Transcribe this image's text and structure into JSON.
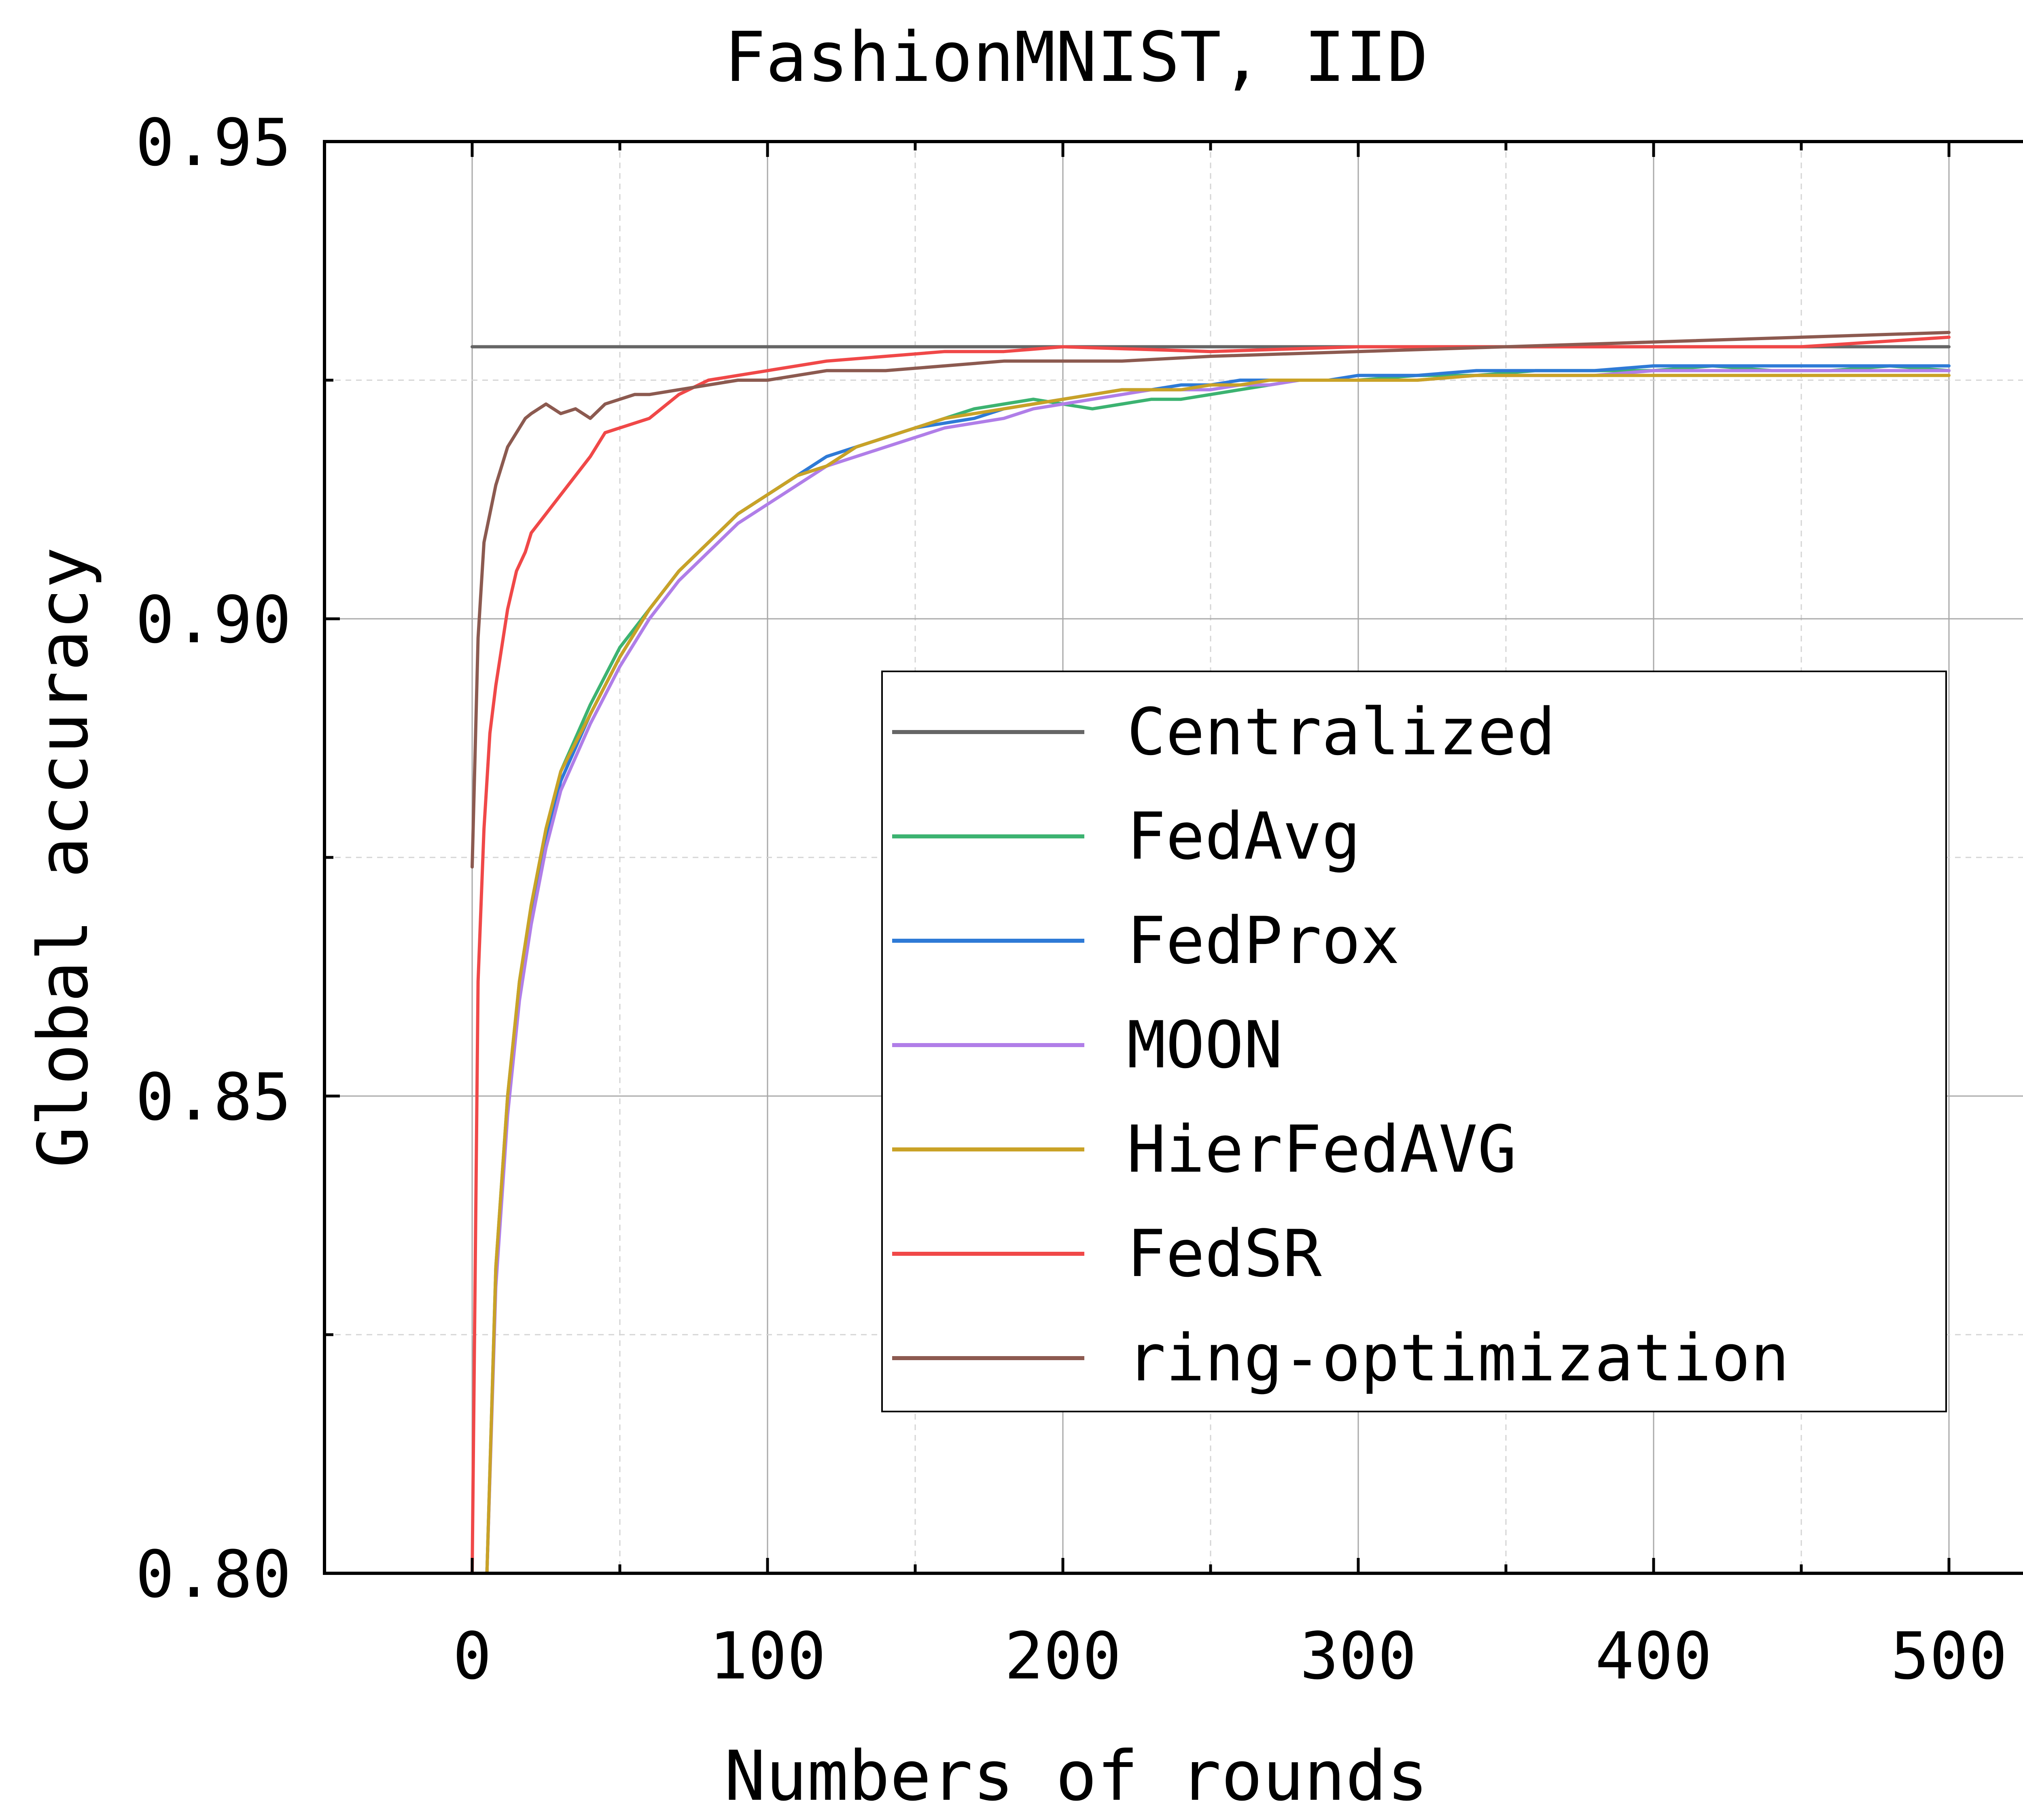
{
  "chart_data": {
    "type": "line",
    "title": "FashionMNIST, IID",
    "xlabel": "Numbers of rounds",
    "ylabel": "Global accuracy",
    "xlim": [
      -50,
      550
    ],
    "ylim": [
      0.8,
      0.95
    ],
    "xticks": [
      0,
      100,
      200,
      300,
      400,
      500
    ],
    "xtick_labels": [
      "0",
      "100",
      "200",
      "300",
      "400",
      "500"
    ],
    "yticks": [
      0.8,
      0.85,
      0.9,
      0.95
    ],
    "ytick_labels": [
      "0.80",
      "0.85",
      "0.90",
      "0.95"
    ],
    "grid": true,
    "legend_position": "center-right",
    "series": [
      {
        "name": "Centralized",
        "color": "#666666",
        "x": [
          0,
          500
        ],
        "y": [
          0.9285,
          0.9285
        ]
      },
      {
        "name": "FedAvg",
        "color": "#3cb371",
        "x": [
          5,
          8,
          12,
          16,
          20,
          25,
          30,
          40,
          50,
          60,
          70,
          80,
          90,
          100,
          110,
          120,
          130,
          140,
          150,
          160,
          170,
          180,
          190,
          200,
          210,
          220,
          230,
          240,
          250,
          260,
          270,
          280,
          290,
          300,
          320,
          340,
          360,
          380,
          400,
          420,
          440,
          460,
          480,
          500
        ],
        "y": [
          0.8,
          0.832,
          0.85,
          0.862,
          0.87,
          0.878,
          0.884,
          0.891,
          0.897,
          0.901,
          0.905,
          0.908,
          0.911,
          0.913,
          0.915,
          0.916,
          0.918,
          0.919,
          0.92,
          0.921,
          0.922,
          0.9225,
          0.923,
          0.9225,
          0.922,
          0.9225,
          0.923,
          0.923,
          0.9235,
          0.924,
          0.9245,
          0.925,
          0.925,
          0.925,
          0.9255,
          0.9255,
          0.926,
          0.926,
          0.926,
          0.9265,
          0.926,
          0.926,
          0.9265,
          0.926
        ]
      },
      {
        "name": "FedProx",
        "color": "#2e7ad6",
        "x": [
          5,
          8,
          12,
          16,
          20,
          25,
          30,
          40,
          50,
          60,
          70,
          80,
          90,
          100,
          110,
          120,
          130,
          140,
          150,
          160,
          170,
          180,
          190,
          200,
          210,
          220,
          230,
          240,
          250,
          260,
          270,
          280,
          290,
          300,
          320,
          340,
          360,
          380,
          400,
          420,
          440,
          460,
          480,
          500
        ],
        "y": [
          0.8,
          0.831,
          0.849,
          0.861,
          0.869,
          0.877,
          0.883,
          0.89,
          0.896,
          0.901,
          0.905,
          0.908,
          0.911,
          0.913,
          0.915,
          0.917,
          0.918,
          0.919,
          0.92,
          0.9205,
          0.921,
          0.922,
          0.9225,
          0.923,
          0.9235,
          0.924,
          0.924,
          0.9245,
          0.9245,
          0.925,
          0.925,
          0.925,
          0.925,
          0.9255,
          0.9255,
          0.926,
          0.926,
          0.926,
          0.9265,
          0.9265,
          0.9265,
          0.9265,
          0.9265,
          0.9265
        ]
      },
      {
        "name": "MOON",
        "color": "#b07ee8",
        "x": [
          5,
          8,
          12,
          16,
          20,
          25,
          30,
          40,
          50,
          60,
          70,
          80,
          90,
          100,
          110,
          120,
          130,
          140,
          150,
          160,
          170,
          180,
          190,
          200,
          210,
          220,
          230,
          240,
          250,
          260,
          270,
          280,
          290,
          300,
          320,
          340,
          360,
          380,
          400,
          420,
          440,
          460,
          480,
          500
        ],
        "y": [
          0.8,
          0.83,
          0.848,
          0.86,
          0.868,
          0.876,
          0.882,
          0.889,
          0.895,
          0.9,
          0.904,
          0.907,
          0.91,
          0.912,
          0.914,
          0.916,
          0.917,
          0.918,
          0.919,
          0.92,
          0.9205,
          0.921,
          0.922,
          0.9225,
          0.923,
          0.9235,
          0.924,
          0.924,
          0.924,
          0.9245,
          0.9245,
          0.925,
          0.925,
          0.925,
          0.925,
          0.9255,
          0.9255,
          0.9255,
          0.926,
          0.926,
          0.926,
          0.926,
          0.926,
          0.926
        ]
      },
      {
        "name": "HierFedAVG",
        "color": "#c9a227",
        "x": [
          5,
          8,
          12,
          16,
          20,
          25,
          30,
          40,
          50,
          60,
          70,
          80,
          90,
          100,
          110,
          120,
          130,
          140,
          150,
          160,
          170,
          180,
          190,
          200,
          210,
          220,
          230,
          240,
          250,
          260,
          270,
          280,
          290,
          300,
          320,
          340,
          360,
          380,
          400,
          420,
          440,
          460,
          480,
          500
        ],
        "y": [
          0.8,
          0.832,
          0.85,
          0.862,
          0.87,
          0.878,
          0.884,
          0.89,
          0.896,
          0.901,
          0.905,
          0.908,
          0.911,
          0.913,
          0.915,
          0.916,
          0.918,
          0.919,
          0.92,
          0.921,
          0.9215,
          0.922,
          0.9225,
          0.923,
          0.9235,
          0.924,
          0.924,
          0.924,
          0.9245,
          0.9245,
          0.925,
          0.925,
          0.925,
          0.925,
          0.925,
          0.9255,
          0.9255,
          0.9255,
          0.9255,
          0.9255,
          0.9255,
          0.9255,
          0.9255,
          0.9255
        ]
      },
      {
        "name": "FedSR",
        "color": "#f04848",
        "x": [
          0,
          2,
          4,
          6,
          8,
          10,
          12,
          15,
          18,
          20,
          25,
          30,
          35,
          40,
          45,
          50,
          60,
          70,
          80,
          90,
          100,
          120,
          140,
          160,
          180,
          200,
          250,
          300,
          350,
          400,
          450,
          500
        ],
        "y": [
          0.8,
          0.862,
          0.878,
          0.888,
          0.893,
          0.897,
          0.901,
          0.905,
          0.907,
          0.909,
          0.911,
          0.913,
          0.915,
          0.917,
          0.9195,
          0.92,
          0.921,
          0.9235,
          0.925,
          0.9255,
          0.926,
          0.927,
          0.9275,
          0.928,
          0.928,
          0.9285,
          0.928,
          0.9285,
          0.9285,
          0.9285,
          0.9285,
          0.9295
        ]
      },
      {
        "name": "ring-optimization",
        "color": "#8c5a50",
        "x": [
          0,
          2,
          4,
          6,
          8,
          10,
          12,
          15,
          18,
          20,
          25,
          30,
          35,
          40,
          45,
          50,
          55,
          60,
          70,
          80,
          90,
          100,
          110,
          120,
          140,
          160,
          180,
          200,
          220,
          250,
          300,
          350,
          400,
          450,
          500
        ],
        "y": [
          0.874,
          0.898,
          0.908,
          0.911,
          0.914,
          0.916,
          0.918,
          0.9195,
          0.921,
          0.9215,
          0.9225,
          0.9215,
          0.922,
          0.921,
          0.9225,
          0.923,
          0.9235,
          0.9235,
          0.924,
          0.9245,
          0.925,
          0.925,
          0.9255,
          0.926,
          0.926,
          0.9265,
          0.927,
          0.927,
          0.927,
          0.9275,
          0.928,
          0.9285,
          0.929,
          0.9295,
          0.93
        ]
      }
    ]
  }
}
